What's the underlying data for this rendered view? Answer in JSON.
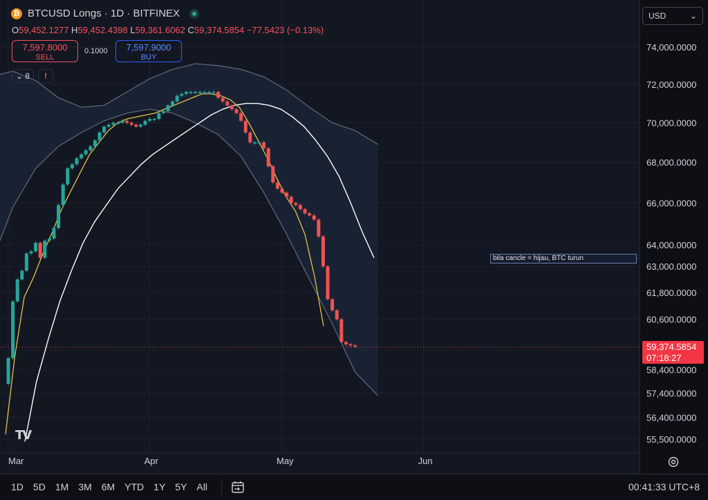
{
  "header": {
    "icon": "bitcoin-icon",
    "symbol_title": "BTCUSD Longs · 1D · BITFINEX",
    "ohlc": {
      "o_label": "O",
      "o": "59,452.1277",
      "h_label": "H",
      "h": "59,452.4398",
      "l_label": "L",
      "l": "59,361.6062",
      "c_label": "C",
      "c": "59,374.5854",
      "change": "−77.5423 (−0.13%)"
    }
  },
  "trade": {
    "sell_price": "7,597.8000",
    "sell_label": "SELL",
    "quantity": "0.1000",
    "buy_price": "7,597.9000",
    "buy_label": "BUY"
  },
  "indicators": {
    "collapse_label": "⌄ 8",
    "warning_icon": "!"
  },
  "currency": {
    "selected": "USD",
    "chevron": "chevron-down-icon"
  },
  "note_text": "bila cancle = hijau, BTC turun",
  "price_badge": {
    "price": "59,374.5854",
    "countdown": "07:18:27"
  },
  "bottom_bar": {
    "ranges": [
      "1D",
      "5D",
      "1M",
      "3M",
      "6M",
      "YTD",
      "1Y",
      "5Y",
      "All"
    ],
    "clock": "00:41:33 UTC+8"
  },
  "colors": {
    "up": "#26a69a",
    "down": "#ef5350",
    "yellow_ma": "#e6c34a",
    "white_ma": "#ffffff",
    "band": "#5d6678",
    "bg": "#131722"
  },
  "chart_data": {
    "type": "candlestick",
    "x_tick_labels": [
      "Mar",
      "Apr",
      "May",
      "Jun"
    ],
    "y_tick_labels": [
      "74,000.0000",
      "72,000.0000",
      "70,000.0000",
      "68,000.0000",
      "66,000.0000",
      "64,000.0000",
      "63,000.0000",
      "61,800.0000",
      "60,600.0000",
      "58,400.0000",
      "57,400.0000",
      "56,400.0000",
      "55,500.0000"
    ],
    "scale": "log",
    "ylim": [
      54000,
      75600
    ],
    "current_price": 59374.5854,
    "candles_close": [
      58900,
      61400,
      62400,
      62800,
      63600,
      63700,
      64100,
      63400,
      64200,
      64300,
      64800,
      65900,
      66900,
      67700,
      67900,
      68200,
      68400,
      68600,
      68800,
      69100,
      69500,
      69800,
      69900,
      70000,
      70000,
      70100,
      70000,
      69900,
      69800,
      69900,
      70100,
      70200,
      70200,
      70500,
      70600,
      70900,
      71100,
      71400,
      71500,
      71600,
      71600,
      71600,
      71600,
      71600,
      71600,
      71600,
      71300,
      71100,
      70900,
      70700,
      70500,
      70100,
      69500,
      69000,
      69000,
      69000,
      68700,
      67800,
      67000,
      66700,
      66500,
      66300,
      66000,
      65900,
      65700,
      65500,
      65400,
      65200,
      64400,
      63000,
      61500,
      61000,
      60600,
      59600,
      59500,
      59450,
      59400
    ],
    "moving_averages": [
      {
        "color": "yellow",
        "values": [
          55700,
          59000,
          61600,
          62500,
          63600,
          64600,
          65700,
          66600,
          67500,
          68400,
          69000,
          69600,
          70000,
          70200,
          70300,
          70400,
          70500,
          70700,
          70900,
          71100,
          71300,
          71500,
          71500,
          71400,
          71200,
          70800,
          70000,
          69100,
          68200,
          67200,
          66300,
          65600,
          64500,
          62600,
          60300
        ]
      },
      {
        "color": "white",
        "values": [
          55400,
          57900,
          59700,
          61400,
          62800,
          64100,
          65100,
          65900,
          66700,
          67300,
          67900,
          68400,
          68800,
          69200,
          69600,
          70000,
          70400,
          70700,
          70900,
          71000,
          71000,
          70900,
          70700,
          70300,
          69800,
          69100,
          68300,
          67300,
          66000,
          64600,
          63400
        ]
      },
      {
        "color": "band-upper",
        "values": [
          65000,
          68000,
          70600,
          71800,
          72400,
          72700,
          72200,
          71300,
          70800,
          70900,
          71600,
          72300,
          72800,
          73100,
          73000,
          72800,
          72400,
          71700,
          70800,
          70000,
          69600,
          68900
        ]
      },
      {
        "color": "band-lower",
        "values": [
          53000,
          54500,
          56800,
          60000,
          63000,
          65800,
          67700,
          68800,
          69500,
          70100,
          70500,
          70700,
          70500,
          70000,
          69400,
          68300,
          66500,
          64500,
          62400,
          60400,
          58300,
          57300
        ]
      }
    ]
  }
}
